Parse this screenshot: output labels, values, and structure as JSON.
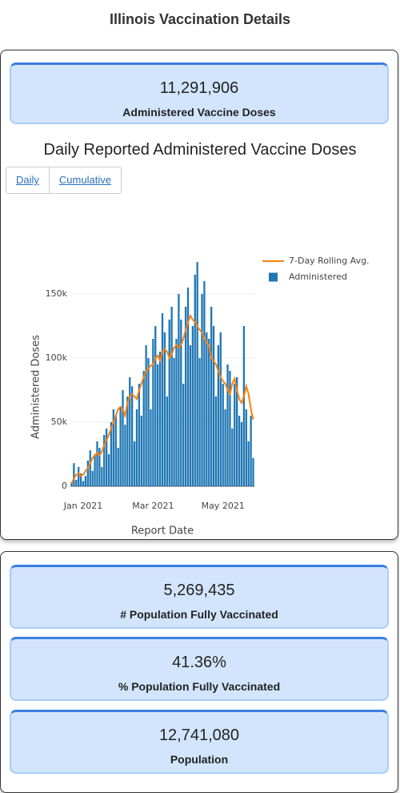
{
  "title": "Illinois Vaccination Details",
  "top_card": {
    "value": "11,291,906",
    "label": "Administered Vaccine Doses"
  },
  "chart_data": {
    "type": "bar",
    "title": "Daily Reported Administered Vaccine Doses",
    "buttons": [
      "Daily",
      "Cumulative"
    ],
    "x_label": "Report Date",
    "y_label": "Administered Doses",
    "categories": [
      null,
      null,
      null,
      null,
      null,
      "Jan 2021",
      null,
      null,
      null,
      null,
      null,
      null,
      null,
      null,
      null,
      null,
      null,
      null,
      null,
      null,
      null,
      null,
      null,
      null,
      null,
      null,
      null,
      null,
      null,
      null,
      null,
      null,
      null,
      null,
      null,
      "Mar 2021",
      null,
      null,
      null,
      null,
      null,
      null,
      null,
      null,
      null,
      null,
      null,
      null,
      null,
      null,
      null,
      null,
      null,
      null,
      null,
      null,
      null,
      null,
      null,
      null,
      null,
      null,
      null,
      null,
      null,
      "May 2021",
      null,
      null,
      null,
      null,
      null,
      null,
      null,
      null,
      null,
      null,
      null,
      null,
      null
    ],
    "series": [
      {
        "name": "7-Day Rolling Avg.",
        "type": "line",
        "color": "#ff7f0e",
        "values": [
          2000,
          6000,
          9000,
          10000,
          8000,
          9000,
          12000,
          14000,
          18000,
          22000,
          24000,
          26000,
          24000,
          27000,
          32000,
          36000,
          40000,
          45000,
          50000,
          55000,
          60000,
          62000,
          60000,
          55000,
          65000,
          70000,
          72000,
          70000,
          68000,
          75000,
          80000,
          85000,
          90000,
          92000,
          94000,
          95000,
          100000,
          102000,
          98000,
          105000,
          107000,
          105000,
          100000,
          103000,
          108000,
          110000,
          108000,
          110000,
          115000,
          122000,
          128000,
          133000,
          130000,
          128000,
          125000,
          122000,
          120000,
          115000,
          112000,
          110000,
          100000,
          98000,
          95000,
          90000,
          85000,
          82000,
          80000,
          75000,
          72000,
          80000,
          84000,
          75000,
          68000,
          65000,
          70000,
          78000,
          72000,
          60000,
          52000
        ]
      },
      {
        "name": "Administered",
        "type": "bar",
        "color": "#1f77b4",
        "values": [
          3000,
          18000,
          5000,
          15000,
          10000,
          4000,
          8000,
          20000,
          28000,
          12000,
          25000,
          35000,
          30000,
          15000,
          40000,
          45000,
          25000,
          50000,
          60000,
          55000,
          30000,
          62000,
          75000,
          48000,
          70000,
          85000,
          78000,
          35000,
          60000,
          80000,
          55000,
          90000,
          110000,
          100000,
          60000,
          115000,
          125000,
          95000,
          105000,
          135000,
          120000,
          70000,
          130000,
          140000,
          100000,
          115000,
          150000,
          130000,
          80000,
          140000,
          155000,
          110000,
          125000,
          165000,
          175000,
          100000,
          150000,
          160000,
          120000,
          115000,
          140000,
          125000,
          70000,
          110000,
          120000,
          80000,
          60000,
          95000,
          90000,
          45000,
          80000,
          85000,
          55000,
          50000,
          125000,
          60000,
          35000,
          55000,
          22000
        ]
      }
    ],
    "ylim": [
      0,
      180000
    ],
    "yticks": [
      0,
      {
        "value": 50000,
        "label": "50k"
      },
      {
        "value": 100000,
        "label": "100k"
      },
      {
        "value": 150000,
        "label": "150k"
      }
    ],
    "grid": true,
    "legend": "top-right"
  },
  "cards": [
    {
      "value": "5,269,435",
      "label": "# Population Fully Vaccinated"
    },
    {
      "value": "41.36%",
      "label": "% Population Fully Vaccinated"
    },
    {
      "value": "12,741,080",
      "label": "Population"
    }
  ]
}
